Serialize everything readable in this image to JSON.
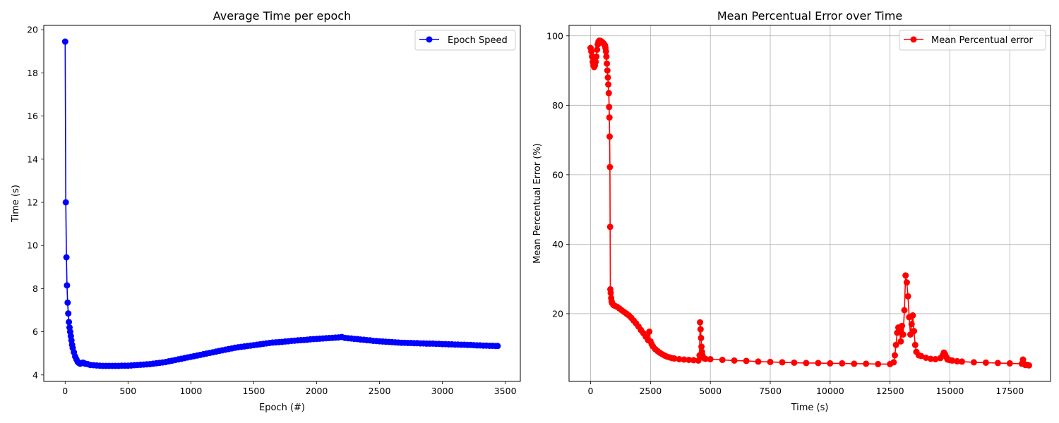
{
  "chart_data": [
    {
      "type": "line",
      "title": "Average Time per epoch",
      "xlabel": "Epoch (#)",
      "ylabel": "Time (s)",
      "xlim": [
        -170,
        3620
      ],
      "ylim": [
        3.7,
        20.2
      ],
      "xticks": [
        0,
        500,
        1000,
        1500,
        2000,
        2500,
        3000,
        3500
      ],
      "yticks": [
        4,
        6,
        8,
        10,
        12,
        14,
        16,
        18,
        20
      ],
      "grid": false,
      "legend_position": "top-right",
      "series": [
        {
          "name": "Epoch Speed",
          "color": "#0000ff",
          "marker": "circle",
          "x": [
            0,
            5,
            10,
            15,
            20,
            25,
            30,
            35,
            40,
            45,
            50,
            55,
            60,
            70,
            80,
            90,
            100,
            110,
            120,
            130,
            140,
            150,
            160,
            180,
            200,
            225,
            250,
            275,
            300,
            325,
            350,
            375,
            400,
            425,
            450,
            475,
            500,
            525,
            550,
            575,
            600,
            625,
            650,
            675,
            700,
            725,
            750,
            775,
            800,
            825,
            850,
            875,
            900,
            925,
            950,
            975,
            1000,
            1025,
            1050,
            1075,
            1100,
            1125,
            1150,
            1175,
            1200,
            1225,
            1250,
            1275,
            1300,
            1325,
            1350,
            1375,
            1400,
            1425,
            1450,
            1475,
            1500,
            1525,
            1550,
            1575,
            1600,
            1625,
            1650,
            1675,
            1700,
            1725,
            1750,
            1775,
            1800,
            1825,
            1850,
            1875,
            1900,
            1925,
            1950,
            1975,
            2000,
            2025,
            2050,
            2075,
            2100,
            2125,
            2150,
            2175,
            2200,
            2225,
            2250,
            2275,
            2300,
            2325,
            2350,
            2375,
            2400,
            2425,
            2450,
            2475,
            2500,
            2525,
            2550,
            2575,
            2600,
            2625,
            2650,
            2675,
            2700,
            2725,
            2750,
            2775,
            2800,
            2825,
            2850,
            2875,
            2900,
            2925,
            2950,
            2975,
            3000,
            3025,
            3050,
            3075,
            3100,
            3125,
            3150,
            3175,
            3200,
            3225,
            3250,
            3275,
            3300,
            3325,
            3350,
            3375,
            3400,
            3425,
            3440
          ],
          "y": [
            19.45,
            12.0,
            9.45,
            8.15,
            7.35,
            6.85,
            6.45,
            6.2,
            6.0,
            5.8,
            5.6,
            5.4,
            5.25,
            5.05,
            4.85,
            4.72,
            4.6,
            4.55,
            4.52,
            4.55,
            4.57,
            4.55,
            4.52,
            4.5,
            4.46,
            4.45,
            4.44,
            4.43,
            4.42,
            4.42,
            4.42,
            4.42,
            4.42,
            4.42,
            4.43,
            4.43,
            4.43,
            4.44,
            4.45,
            4.46,
            4.47,
            4.48,
            4.49,
            4.5,
            4.52,
            4.54,
            4.56,
            4.58,
            4.6,
            4.63,
            4.66,
            4.69,
            4.72,
            4.75,
            4.78,
            4.81,
            4.84,
            4.87,
            4.9,
            4.93,
            4.96,
            4.99,
            5.02,
            5.05,
            5.08,
            5.11,
            5.14,
            5.17,
            5.2,
            5.23,
            5.26,
            5.28,
            5.3,
            5.32,
            5.34,
            5.36,
            5.38,
            5.4,
            5.42,
            5.44,
            5.46,
            5.48,
            5.5,
            5.51,
            5.52,
            5.53,
            5.55,
            5.56,
            5.58,
            5.59,
            5.6,
            5.61,
            5.62,
            5.63,
            5.65,
            5.66,
            5.67,
            5.68,
            5.69,
            5.7,
            5.71,
            5.72,
            5.73,
            5.74,
            5.76,
            5.72,
            5.7,
            5.69,
            5.67,
            5.66,
            5.64,
            5.63,
            5.61,
            5.6,
            5.58,
            5.57,
            5.56,
            5.55,
            5.54,
            5.53,
            5.52,
            5.51,
            5.5,
            5.49,
            5.49,
            5.48,
            5.48,
            5.47,
            5.47,
            5.46,
            5.46,
            5.45,
            5.45,
            5.45,
            5.44,
            5.44,
            5.43,
            5.43,
            5.42,
            5.42,
            5.41,
            5.41,
            5.4,
            5.4,
            5.39,
            5.39,
            5.38,
            5.37,
            5.37,
            5.36,
            5.36,
            5.35,
            5.35,
            5.34,
            5.34
          ]
        }
      ]
    },
    {
      "type": "line",
      "title": "Mean Percentual Error over Time",
      "xlabel": "Time (s)",
      "ylabel": "Mean Percentual Error (%)",
      "xlim": [
        -900,
        19200
      ],
      "ylim": [
        0.5,
        103
      ],
      "xticks": [
        0,
        2500,
        5000,
        7500,
        10000,
        12500,
        15000,
        17500
      ],
      "yticks": [
        20,
        40,
        60,
        80,
        100
      ],
      "grid": true,
      "legend_position": "top-right",
      "series": [
        {
          "name": "Mean Percentual error",
          "color": "#ff0000",
          "marker": "circle",
          "x": [
            0,
            30,
            60,
            90,
            120,
            150,
            180,
            210,
            240,
            270,
            300,
            330,
            360,
            390,
            420,
            450,
            480,
            510,
            540,
            570,
            600,
            620,
            640,
            660,
            680,
            700,
            720,
            740,
            760,
            775,
            785,
            795,
            805,
            815,
            825,
            840,
            860,
            880,
            900,
            950,
            1000,
            1100,
            1200,
            1300,
            1400,
            1500,
            1600,
            1700,
            1800,
            1900,
            2000,
            2100,
            2200,
            2300,
            2400,
            2450,
            2500,
            2550,
            2600,
            2700,
            2800,
            2900,
            3000,
            3100,
            3200,
            3300,
            3400,
            3500,
            3700,
            3900,
            4100,
            4300,
            4500,
            4550,
            4570,
            4590,
            4610,
            4630,
            4650,
            4670,
            4700,
            4750,
            4800,
            5000,
            5500,
            6000,
            6500,
            7000,
            7500,
            8000,
            8500,
            9000,
            9500,
            10000,
            10500,
            11000,
            11500,
            12000,
            12500,
            12650,
            12700,
            12750,
            12800,
            12850,
            12900,
            12950,
            13000,
            13050,
            13100,
            13150,
            13200,
            13250,
            13300,
            13350,
            13400,
            13450,
            13500,
            13550,
            13600,
            13700,
            13800,
            14000,
            14200,
            14400,
            14600,
            14700,
            14750,
            14800,
            14850,
            14900,
            15000,
            15100,
            15300,
            15500,
            16000,
            16500,
            17000,
            17500,
            18000,
            18050,
            18100,
            18150,
            18200,
            18250,
            18300
          ],
          "y": [
            96.5,
            95.5,
            94.0,
            92.5,
            91.5,
            91.0,
            91.5,
            92.5,
            94.0,
            96.0,
            97.5,
            98.3,
            98.6,
            98.6,
            98.5,
            98.4,
            98.2,
            98.0,
            97.8,
            97.5,
            97.2,
            96.5,
            95.5,
            94.0,
            92.0,
            90.0,
            88.0,
            86.0,
            83.5,
            79.5,
            76.5,
            71.0,
            62.2,
            45.0,
            27.0,
            26.0,
            24.5,
            23.5,
            23.0,
            22.5,
            22.3,
            22.0,
            21.5,
            21.0,
            20.5,
            20.0,
            19.5,
            18.8,
            18.0,
            17.2,
            16.3,
            15.3,
            14.4,
            13.4,
            12.4,
            14.8,
            12.0,
            11.2,
            10.6,
            9.8,
            9.2,
            8.7,
            8.3,
            7.9,
            7.6,
            7.4,
            7.2,
            7.1,
            6.9,
            6.8,
            6.7,
            6.6,
            6.5,
            8.0,
            17.5,
            15.5,
            13.0,
            10.5,
            9.0,
            8.0,
            7.4,
            7.1,
            7.0,
            6.9,
            6.7,
            6.5,
            6.4,
            6.2,
            6.1,
            6.0,
            5.9,
            5.8,
            5.8,
            5.7,
            5.7,
            5.6,
            5.6,
            5.5,
            5.5,
            6.0,
            8.0,
            11.0,
            14.5,
            16.0,
            15.0,
            12.0,
            16.5,
            14.0,
            21.0,
            31.0,
            29.0,
            25.0,
            19.0,
            14.0,
            17.0,
            19.5,
            15.0,
            11.0,
            9.0,
            8.0,
            7.8,
            7.3,
            7.0,
            6.9,
            7.2,
            8.0,
            8.8,
            8.3,
            7.5,
            6.8,
            6.6,
            6.5,
            6.3,
            6.2,
            6.0,
            5.9,
            5.8,
            5.7,
            5.6,
            6.8,
            5.5,
            5.2,
            5.3,
            5.2,
            5.1
          ]
        }
      ]
    }
  ]
}
